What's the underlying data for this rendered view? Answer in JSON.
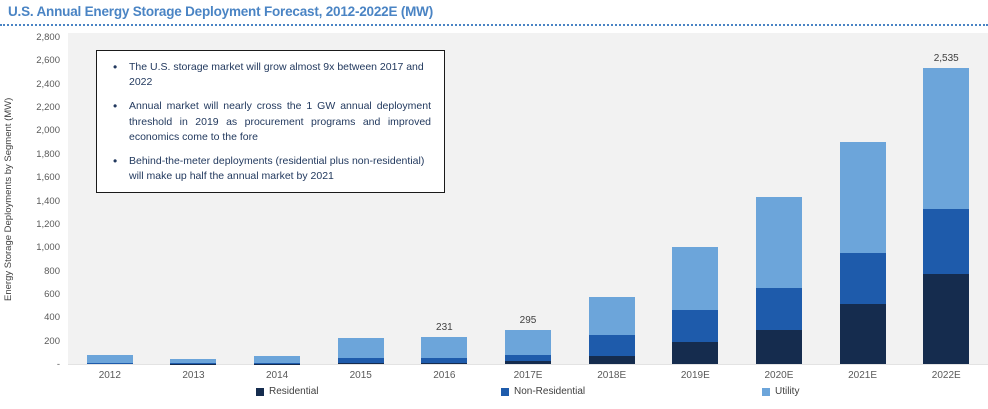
{
  "title": "U.S. Annual Energy Storage Deployment Forecast, 2012-2022E (MW)",
  "annotation": {
    "bullets": [
      "The U.S. storage market will grow almost 9x between 2017 and 2022",
      "Annual market will nearly cross the 1 GW annual deployment threshold in 2019 as procurement programs and improved economics come to the fore",
      "Behind-the-meter deployments (residential plus non-residential) will make up half the annual market by 2021"
    ]
  },
  "chart_data": {
    "type": "bar",
    "stacked": true,
    "title": "U.S. Annual Energy Storage Deployment Forecast, 2012-2022E (MW)",
    "ylabel": "Energy Storage Deployments by Segment (MW)",
    "xlabel": "",
    "ylim": [
      0,
      2800
    ],
    "ytick_step": 200,
    "ytick_labels": [
      "-",
      "200",
      "400",
      "600",
      "800",
      "1,000",
      "1,200",
      "1,400",
      "1,600",
      "1,800",
      "2,000",
      "2,200",
      "2,400",
      "2,600",
      "2,800"
    ],
    "grid": false,
    "legend_position": "bottom",
    "categories": [
      "2012",
      "2013",
      "2014",
      "2015",
      "2016",
      "2017E",
      "2018E",
      "2019E",
      "2020E",
      "2021E",
      "2022E"
    ],
    "series": [
      {
        "name": "Residential",
        "color": "#152c4e",
        "values": [
          0,
          2,
          3,
          6,
          8,
          25,
          70,
          190,
          290,
          510,
          770
        ]
      },
      {
        "name": "Non-Residential",
        "color": "#1e5bab",
        "values": [
          5,
          5,
          7,
          45,
          43,
          55,
          180,
          275,
          360,
          440,
          560
        ]
      },
      {
        "name": "Utility",
        "color": "#6ca5da",
        "values": [
          70,
          37,
          55,
          175,
          180,
          215,
          325,
          535,
          780,
          950,
          1205
        ]
      }
    ],
    "totals": [
      75,
      44,
      65,
      226,
      231,
      295,
      575,
      1000,
      1430,
      1900,
      2535
    ],
    "bar_labels": [
      "",
      "",
      "",
      "",
      "231",
      "295",
      "",
      "",
      "",
      "",
      "2,535"
    ],
    "legend_x_positions": [
      256,
      501,
      762
    ],
    "colors": {
      "title_accent": "#4a84c4",
      "plot_background": "#f2f2f2",
      "axis_text": "#595959",
      "label_text": "#404040"
    }
  }
}
